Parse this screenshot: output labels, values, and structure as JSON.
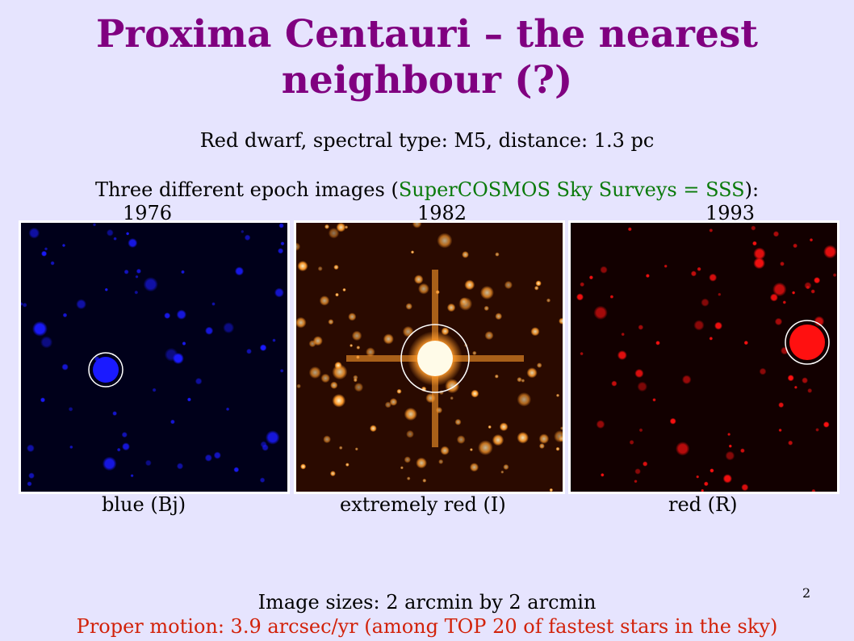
{
  "title": "Proxima Centauri – the nearest neighbour (?)",
  "subtitle": "Red dwarf, spectral type: M5, distance: 1.3 pc",
  "epoch_line": {
    "prefix": "Three different epoch images (",
    "link": "SuperCOSMOS Sky Surveys =  SSS",
    "suffix": "):"
  },
  "panels": [
    {
      "year": "1976",
      "caption": "blue (Bj)",
      "color": "#1a1aff",
      "bg": "#00001a"
    },
    {
      "year": "1982",
      "caption": "extremely red (I)",
      "color": "#ff9a2a",
      "bg": "#2a0a00"
    },
    {
      "year": "1993",
      "caption": "red (R)",
      "color": "#ff1010",
      "bg": "#120000"
    }
  ],
  "image_sizes": "Image sizes: 2 arcmin by 2 arcmin",
  "proper_motion": "Proper motion: 3.9 arcsec/yr  (among TOP 20 of fastest stars in the sky)",
  "slide_number": "2"
}
